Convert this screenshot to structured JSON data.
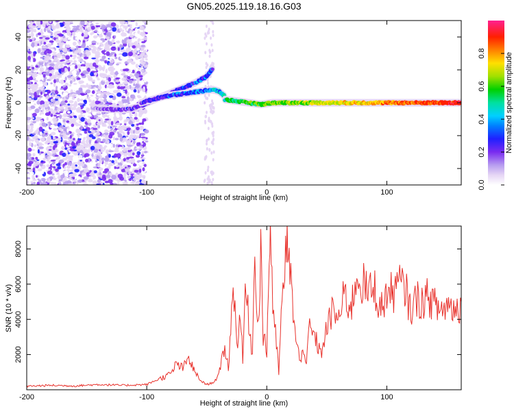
{
  "figure_title": "GN05.2025.119.18.16.G03",
  "chart_data": [
    {
      "type": "heatmap",
      "xlabel": "Height of straight line (km)",
      "ylabel": "Frequency (Hz)",
      "xlim": [
        -200,
        162
      ],
      "ylim": [
        -50,
        50
      ],
      "xticks": [
        -200,
        -100,
        0,
        100
      ],
      "yticks": [
        -40,
        -20,
        0,
        20,
        40
      ],
      "colorbar": {
        "label": "Normalized spectral amplitude",
        "range": [
          0,
          1
        ],
        "ticks": [
          0.0,
          0.2,
          0.4,
          0.6,
          0.8
        ],
        "colors": [
          "#ffffff",
          "#e6d6f5",
          "#b89ef0",
          "#7a2cf0",
          "#2020ff",
          "#00bfff",
          "#00e0a0",
          "#00d000",
          "#a0e000",
          "#ffe000",
          "#ff8000",
          "#ff2000",
          "#ff2090"
        ]
      },
      "traces": [
        {
          "name": "",
          "x": [
            -145,
            -130,
            -115,
            -105,
            -100,
            -90,
            -80,
            -70,
            -60,
            -50,
            -45
          ],
          "y": [
            -3,
            -4,
            -4,
            -2,
            0,
            3,
            6,
            9,
            12,
            16,
            21
          ],
          "amplitude": 0.35
        },
        {
          "name": "",
          "x": [
            -105,
            -95,
            -85,
            -75,
            -65,
            -55,
            -45,
            -40,
            -35
          ],
          "y": [
            0,
            2,
            4,
            5,
            6,
            7,
            8,
            7,
            4
          ],
          "amplitude": 0.45
        },
        {
          "name": "",
          "x": [
            -35,
            -25,
            -15,
            -5,
            5,
            15,
            25,
            35,
            45,
            55,
            65,
            75,
            85,
            95,
            105,
            115,
            125,
            135,
            145,
            155,
            162
          ],
          "y": [
            2,
            1,
            0,
            -1,
            0,
            0,
            0,
            0,
            0,
            0,
            0,
            0,
            0,
            0,
            0,
            0,
            0,
            0,
            0,
            0,
            0
          ],
          "amplitude": 0.95
        }
      ]
    },
    {
      "type": "line",
      "xlabel": "Height of straight line (km)",
      "ylabel": "SNR (10 * v/v)",
      "xlim": [
        -200,
        162
      ],
      "ylim": [
        0,
        9300
      ],
      "xticks": [
        -200,
        -100,
        0,
        100
      ],
      "yticks": [
        2000,
        4000,
        6000,
        8000
      ],
      "series": [
        {
          "name": "",
          "color": "#e8302a",
          "x": [
            -200,
            -180,
            -160,
            -140,
            -120,
            -100,
            -90,
            -80,
            -75,
            -70,
            -65,
            -60,
            -55,
            -50,
            -45,
            -40,
            -35,
            -32,
            -30,
            -28,
            -25,
            -22,
            -20,
            -18,
            -15,
            -12,
            -10,
            -7,
            -5,
            -3,
            0,
            2,
            3,
            5,
            8,
            10,
            12,
            15,
            17,
            18,
            20,
            22,
            25,
            28,
            30,
            33,
            35,
            40,
            45,
            50,
            55,
            60,
            65,
            70,
            75,
            80,
            85,
            90,
            95,
            100,
            105,
            110,
            115,
            120,
            125,
            130,
            135,
            140,
            145,
            150,
            155,
            160,
            162
          ],
          "y": [
            200,
            250,
            220,
            300,
            250,
            300,
            600,
            900,
            1500,
            1200,
            1800,
            1000,
            500,
            300,
            400,
            800,
            2500,
            1200,
            3500,
            6300,
            2500,
            4500,
            1500,
            5800,
            4000,
            2000,
            7800,
            3500,
            8300,
            3000,
            2200,
            7400,
            9300,
            5000,
            2500,
            1000,
            4000,
            7000,
            8300,
            6500,
            7800,
            4000,
            2500,
            1500,
            2800,
            1200,
            3500,
            3000,
            2000,
            3500,
            4500,
            4000,
            5500,
            4500,
            6500,
            6000,
            5500,
            5800,
            4500,
            5500,
            5500,
            6000,
            5800,
            4500,
            5200,
            5000,
            5300,
            4800,
            4500,
            4800,
            4700,
            4500,
            5000
          ]
        }
      ]
    }
  ]
}
